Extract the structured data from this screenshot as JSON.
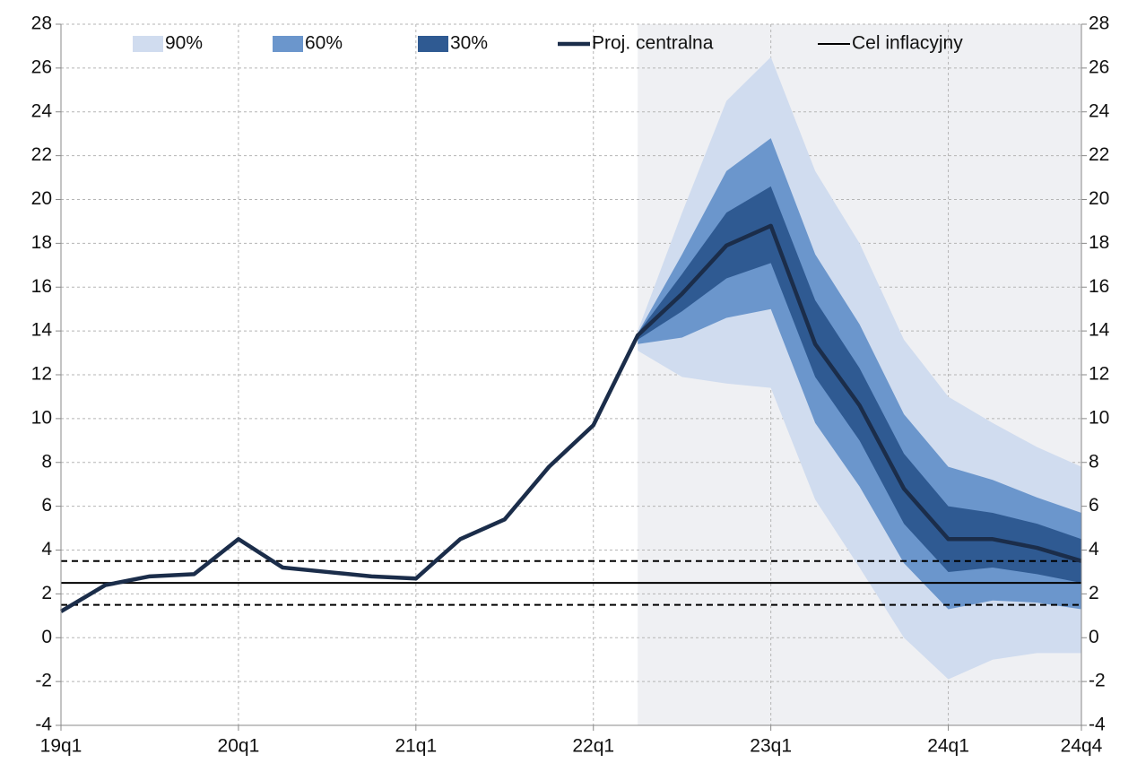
{
  "chart_data": {
    "type": "fan",
    "categories": [
      "19q1",
      null,
      null,
      null,
      "20q1",
      null,
      null,
      null,
      "21q1",
      null,
      null,
      null,
      "22q1",
      null,
      null,
      null,
      "23q1",
      null,
      null,
      null,
      "24q1",
      null,
      null,
      "24q4"
    ],
    "ylim": [
      -4,
      28
    ],
    "yticks": [
      -4,
      -2,
      0,
      2,
      4,
      6,
      8,
      10,
      12,
      14,
      16,
      18,
      20,
      22,
      24,
      26,
      28
    ],
    "grid": true,
    "bands": [
      {
        "name": "90%",
        "color": "#d0dcef",
        "lower": [
          null,
          null,
          null,
          null,
          null,
          null,
          null,
          null,
          null,
          null,
          null,
          null,
          null,
          13.1,
          11.9,
          11.6,
          11.4,
          6.3,
          3.2,
          0.0,
          -1.9,
          -1.0,
          -0.7,
          -0.7
        ],
        "upper": [
          null,
          null,
          null,
          null,
          null,
          null,
          null,
          null,
          null,
          null,
          null,
          null,
          null,
          14.0,
          19.4,
          24.5,
          26.5,
          21.3,
          18.0,
          13.6,
          11.0,
          9.8,
          8.7,
          7.8
        ]
      },
      {
        "name": "60%",
        "color": "#6b96cc",
        "lower": [
          null,
          null,
          null,
          null,
          null,
          null,
          null,
          null,
          null,
          null,
          null,
          null,
          null,
          13.4,
          13.7,
          14.6,
          15.0,
          9.8,
          6.9,
          3.4,
          1.3,
          1.7,
          1.6,
          1.3
        ],
        "upper": [
          null,
          null,
          null,
          null,
          null,
          null,
          null,
          null,
          null,
          null,
          null,
          null,
          null,
          13.9,
          17.5,
          21.3,
          22.8,
          17.5,
          14.3,
          10.2,
          7.8,
          7.2,
          6.4,
          5.7
        ]
      },
      {
        "name": "30%",
        "color": "#2f5a92",
        "lower": [
          null,
          null,
          null,
          null,
          null,
          null,
          null,
          null,
          null,
          null,
          null,
          null,
          null,
          13.6,
          14.9,
          16.4,
          17.1,
          11.9,
          9.0,
          5.2,
          3.0,
          3.2,
          2.9,
          2.5
        ],
        "upper": [
          null,
          null,
          null,
          null,
          null,
          null,
          null,
          null,
          null,
          null,
          null,
          null,
          null,
          13.9,
          16.6,
          19.4,
          20.6,
          15.4,
          12.3,
          8.4,
          6.0,
          5.7,
          5.2,
          4.5
        ]
      }
    ],
    "series": [
      {
        "name": "Proj. centralna",
        "color": "#1b2d4a",
        "values": [
          1.2,
          2.4,
          2.8,
          2.9,
          4.5,
          3.2,
          3.0,
          2.8,
          2.7,
          4.5,
          5.4,
          7.8,
          9.7,
          13.8,
          15.7,
          17.9,
          18.8,
          13.4,
          10.6,
          6.8,
          4.5,
          4.5,
          4.1,
          3.5
        ]
      }
    ],
    "target": {
      "name": "Cel inflacyjny",
      "color": "#000000",
      "value": 2.5,
      "band": [
        1.5,
        3.5
      ]
    }
  }
}
